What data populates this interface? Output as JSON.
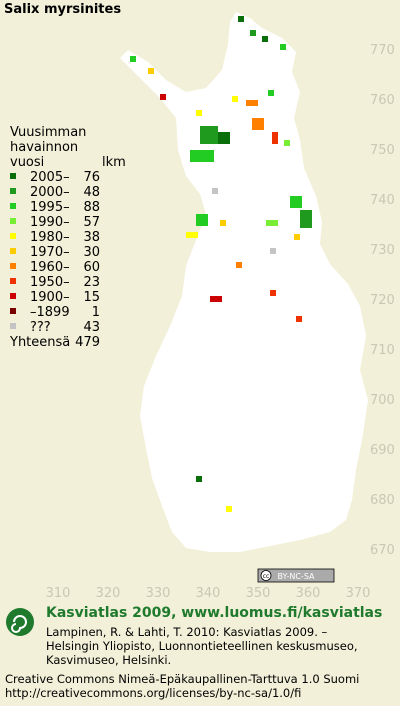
{
  "title": "Salix myrsinites",
  "legend": {
    "heading": [
      "Vuusimman",
      "havainnon",
      "vuosi"
    ],
    "count_heading": "lkm",
    "entries": [
      {
        "label": "2005–",
        "count": 76,
        "color": "#0a6e0a"
      },
      {
        "label": "2000–",
        "count": 48,
        "color": "#1f9a1f"
      },
      {
        "label": "1995–",
        "count": 88,
        "color": "#22cc22"
      },
      {
        "label": "1990–",
        "count": 57,
        "color": "#77ee33"
      },
      {
        "label": "1980–",
        "count": 38,
        "color": "#ffff00"
      },
      {
        "label": "1970–",
        "count": 30,
        "color": "#ffcc00"
      },
      {
        "label": "1960–",
        "count": 60,
        "color": "#ff8000"
      },
      {
        "label": "1950–",
        "count": 23,
        "color": "#ee3300"
      },
      {
        "label": "1900–",
        "count": 15,
        "color": "#cc0000"
      },
      {
        "label": "–1899",
        "count": 1,
        "color": "#7a0000"
      },
      {
        "label": "???",
        "count": 43,
        "color": "#c4c4c4"
      }
    ],
    "total_label": "Yhteensä",
    "total": 479
  },
  "grid": {
    "x_labels": [
      310,
      320,
      330,
      340,
      350,
      360,
      370
    ],
    "y_labels": [
      770,
      760,
      750,
      740,
      730,
      720,
      710,
      700,
      690,
      680,
      670
    ]
  },
  "license_badge": "BY-NC-SA",
  "footer": {
    "site": "Kasviatlas 2009, www.luomus.fi/kasviatlas",
    "citation": [
      "Lampinen, R. & Lahti, T. 2010: Kasviatlas 2009. –",
      "Helsingin Yliopisto, Luonnontieteellinen keskusmuseo,",
      "Kasvimuseo, Helsinki."
    ],
    "license": "Creative Commons Nimeä-Epäkaupallinen-Tarttuva 1.0 Suomi",
    "url": "http://creativecommons.org/licenses/by-nc-sa/1.0/fi"
  }
}
